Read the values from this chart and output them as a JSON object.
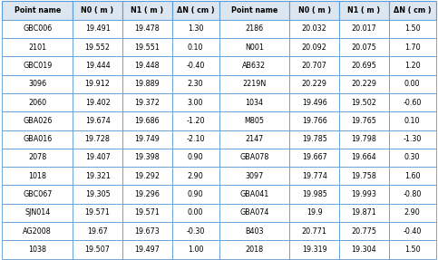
{
  "headers": [
    "Point name",
    "N0 ( m )",
    "N1 ( m )",
    "ΔN ( cm )",
    "Point name",
    "N0 ( m )",
    "N1 ( m )",
    "ΔN ( cm )"
  ],
  "left_data": [
    [
      "GBC006",
      "19.491",
      "19.478",
      "1.30"
    ],
    [
      "2101",
      "19.552",
      "19.551",
      "0.10"
    ],
    [
      "GBC019",
      "19.444",
      "19.448",
      "-0.40"
    ],
    [
      "3096",
      "19.912",
      "19.889",
      "2.30"
    ],
    [
      "2060",
      "19.402",
      "19.372",
      "3.00"
    ],
    [
      "GBA026",
      "19.674",
      "19.686",
      "-1.20"
    ],
    [
      "GBA016",
      "19.728",
      "19.749",
      "-2.10"
    ],
    [
      "2078",
      "19.407",
      "19.398",
      "0.90"
    ],
    [
      "1018",
      "19.321",
      "19.292",
      "2.90"
    ],
    [
      "GBC067",
      "19.305",
      "19.296",
      "0.90"
    ],
    [
      "SJN014",
      "19.571",
      "19.571",
      "0.00"
    ],
    [
      "AG2008",
      "19.67",
      "19.673",
      "-0.30"
    ],
    [
      "1038",
      "19.507",
      "19.497",
      "1.00"
    ]
  ],
  "right_data": [
    [
      "2186",
      "20.032",
      "20.017",
      "1.50"
    ],
    [
      "N001",
      "20.092",
      "20.075",
      "1.70"
    ],
    [
      "AB632",
      "20.707",
      "20.695",
      "1.20"
    ],
    [
      "2219N",
      "20.229",
      "20.229",
      "0.00"
    ],
    [
      "1034",
      "19.496",
      "19.502",
      "-0.60"
    ],
    [
      "M805",
      "19.766",
      "19.765",
      "0.10"
    ],
    [
      "2147",
      "19.785",
      "19.798",
      "-1.30"
    ],
    [
      "GBA078",
      "19.667",
      "19.664",
      "0.30"
    ],
    [
      "3097",
      "19.774",
      "19.758",
      "1.60"
    ],
    [
      "GBA041",
      "19.985",
      "19.993",
      "-0.80"
    ],
    [
      "GBA074",
      "19.9",
      "19.871",
      "2.90"
    ],
    [
      "B403",
      "20.771",
      "20.775",
      "-0.40"
    ],
    [
      "2018",
      "19.319",
      "19.304",
      "1.50"
    ]
  ],
  "header_bg": "#dce6f1",
  "text_color": "#000000",
  "border_color": "#5b9bd5",
  "fig_width": 4.83,
  "fig_height": 2.87,
  "dpi": 100,
  "col_widths": [
    1.35,
    0.95,
    0.95,
    0.9,
    1.35,
    0.95,
    0.95,
    0.9
  ],
  "font_size": 5.8
}
